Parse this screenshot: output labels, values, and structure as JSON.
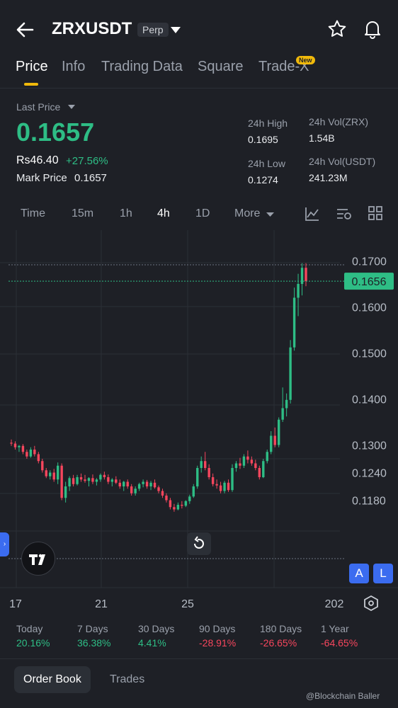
{
  "header": {
    "symbol": "ZRXUSDT",
    "contract_type": "Perp",
    "back_icon": "arrow-left-icon",
    "favorite_icon": "star-icon",
    "alert_icon": "bell-icon"
  },
  "tabs": [
    {
      "label": "Price",
      "active": true
    },
    {
      "label": "Info",
      "active": false
    },
    {
      "label": "Trading Data",
      "active": false
    },
    {
      "label": "Square",
      "active": false
    },
    {
      "label": "Trade-X",
      "active": false,
      "badge": "New"
    }
  ],
  "price_panel": {
    "last_price_label": "Last Price",
    "last_price": "0.1657",
    "fiat_value": "Rs46.40",
    "change_percent": "+27.56%",
    "mark_price_label": "Mark Price",
    "mark_price": "0.1657",
    "high_label": "24h High",
    "high_value": "0.1695",
    "low_label": "24h Low",
    "low_value": "0.1274",
    "vol_base_label": "24h Vol(ZRX)",
    "vol_base_value": "1.54B",
    "vol_quote_label": "24h Vol(USDT)",
    "vol_quote_value": "241.23M"
  },
  "intervals": [
    {
      "label": "Time",
      "active": false
    },
    {
      "label": "15m",
      "active": false
    },
    {
      "label": "1h",
      "active": false
    },
    {
      "label": "4h",
      "active": true
    },
    {
      "label": "1D",
      "active": false
    },
    {
      "label": "More",
      "active": false
    }
  ],
  "chart_tools": [
    "indicator-icon",
    "chart-settings-icon",
    "layout-grid-icon"
  ],
  "chart_data": {
    "type": "candlestick",
    "interval": "4h",
    "current_price_label": "0.1656",
    "y_tick_labels": [
      "0.1700",
      "0.1600",
      "0.1500",
      "0.1400",
      "0.1300",
      "0.1240",
      "0.1180"
    ],
    "x_tick_labels": [
      "17",
      "21",
      "25",
      "202"
    ],
    "colors": {
      "up": "#2ebd85",
      "down": "#f6465d",
      "price_line": "#2ebd85"
    },
    "candles": [
      [
        0.1305,
        0.1312,
        0.1298,
        0.1303
      ],
      [
        0.1303,
        0.1308,
        0.129,
        0.1295
      ],
      [
        0.1295,
        0.13,
        0.1285,
        0.1298
      ],
      [
        0.1298,
        0.1302,
        0.128,
        0.1285
      ],
      [
        0.1285,
        0.129,
        0.127,
        0.1275
      ],
      [
        0.1275,
        0.1295,
        0.1272,
        0.129
      ],
      [
        0.129,
        0.1298,
        0.1275,
        0.128
      ],
      [
        0.128,
        0.1285,
        0.126,
        0.1265
      ],
      [
        0.1265,
        0.127,
        0.124,
        0.1245
      ],
      [
        0.1245,
        0.125,
        0.1228,
        0.1232
      ],
      [
        0.1232,
        0.1245,
        0.1225,
        0.124
      ],
      [
        0.124,
        0.1248,
        0.122,
        0.1225
      ],
      [
        0.1225,
        0.1262,
        0.1215,
        0.1255
      ],
      [
        0.1255,
        0.126,
        0.118,
        0.1185
      ],
      [
        0.1185,
        0.122,
        0.1175,
        0.121
      ],
      [
        0.121,
        0.1232,
        0.12,
        0.1228
      ],
      [
        0.1228,
        0.1235,
        0.121,
        0.1215
      ],
      [
        0.1215,
        0.1235,
        0.1212,
        0.123
      ],
      [
        0.123,
        0.1238,
        0.122,
        0.1225
      ],
      [
        0.1225,
        0.1235,
        0.1218,
        0.1222
      ],
      [
        0.1222,
        0.123,
        0.121,
        0.1228
      ],
      [
        0.1228,
        0.1236,
        0.1215,
        0.122
      ],
      [
        0.122,
        0.1228,
        0.1212,
        0.1225
      ],
      [
        0.1225,
        0.1238,
        0.122,
        0.1235
      ],
      [
        0.1235,
        0.1242,
        0.1225,
        0.123
      ],
      [
        0.123,
        0.1236,
        0.1215,
        0.122
      ],
      [
        0.122,
        0.1228,
        0.121,
        0.1225
      ],
      [
        0.1225,
        0.1232,
        0.1215,
        0.1218
      ],
      [
        0.1218,
        0.1225,
        0.1205,
        0.121
      ],
      [
        0.121,
        0.1222,
        0.12,
        0.122
      ],
      [
        0.122,
        0.1225,
        0.1205,
        0.121
      ],
      [
        0.121,
        0.1215,
        0.119,
        0.1195
      ],
      [
        0.1195,
        0.121,
        0.119,
        0.1205
      ],
      [
        0.1205,
        0.1218,
        0.12,
        0.1215
      ],
      [
        0.1215,
        0.1225,
        0.1208,
        0.122
      ],
      [
        0.122,
        0.1224,
        0.1205,
        0.121
      ],
      [
        0.121,
        0.1222,
        0.1202,
        0.1218
      ],
      [
        0.1218,
        0.1225,
        0.1205,
        0.1208
      ],
      [
        0.1208,
        0.1212,
        0.1195,
        0.12
      ],
      [
        0.12,
        0.1205,
        0.1185,
        0.119
      ],
      [
        0.119,
        0.1195,
        0.1175,
        0.118
      ],
      [
        0.118,
        0.1185,
        0.116,
        0.1165
      ],
      [
        0.1165,
        0.1172,
        0.1155,
        0.116
      ],
      [
        0.116,
        0.1175,
        0.1158,
        0.117
      ],
      [
        0.117,
        0.1178,
        0.1162,
        0.1168
      ],
      [
        0.1168,
        0.118,
        0.1165,
        0.1178
      ],
      [
        0.1178,
        0.1192,
        0.1172,
        0.1188
      ],
      [
        0.1188,
        0.1215,
        0.1185,
        0.121
      ],
      [
        0.121,
        0.1255,
        0.1205,
        0.125
      ],
      [
        0.125,
        0.1275,
        0.124,
        0.1265
      ],
      [
        0.1265,
        0.1285,
        0.1245,
        0.125
      ],
      [
        0.125,
        0.1258,
        0.1225,
        0.123
      ],
      [
        0.123,
        0.1238,
        0.121,
        0.1215
      ],
      [
        0.1215,
        0.1225,
        0.1205,
        0.1212
      ],
      [
        0.1212,
        0.122,
        0.1195,
        0.12
      ],
      [
        0.12,
        0.1222,
        0.1195,
        0.1218
      ],
      [
        0.1218,
        0.1225,
        0.1198,
        0.1202
      ],
      [
        0.1202,
        0.1258,
        0.1198,
        0.125
      ],
      [
        0.125,
        0.1265,
        0.1242,
        0.126
      ],
      [
        0.126,
        0.1272,
        0.1248,
        0.1255
      ],
      [
        0.1255,
        0.128,
        0.125,
        0.1275
      ],
      [
        0.1275,
        0.1288,
        0.126,
        0.1268
      ],
      [
        0.1268,
        0.1275,
        0.1255,
        0.126
      ],
      [
        0.126,
        0.1268,
        0.1245,
        0.125
      ],
      [
        0.125,
        0.1255,
        0.1225,
        0.123
      ],
      [
        0.123,
        0.127,
        0.1228,
        0.1265
      ],
      [
        0.1265,
        0.129,
        0.126,
        0.1285
      ],
      [
        0.1285,
        0.133,
        0.128,
        0.132
      ],
      [
        0.132,
        0.1338,
        0.1295,
        0.13
      ],
      [
        0.13,
        0.136,
        0.1295,
        0.1355
      ],
      [
        0.1355,
        0.1425,
        0.135,
        0.138
      ],
      [
        0.138,
        0.1412,
        0.1362,
        0.1398
      ],
      [
        0.1398,
        0.1528,
        0.139,
        0.1512
      ],
      [
        0.1512,
        0.1642,
        0.1505,
        0.162
      ],
      [
        0.162,
        0.1672,
        0.158,
        0.165
      ],
      [
        0.165,
        0.1695,
        0.1625,
        0.1685
      ],
      [
        0.1685,
        0.1695,
        0.1645,
        0.1656
      ]
    ]
  },
  "chart_overlay": {
    "side_tab_glyph": "›",
    "logo_text": "TV",
    "reset_icon": "reset-icon",
    "a_button": "A",
    "l_button": "L",
    "settings_icon": "hexagon-settings-icon"
  },
  "performance": [
    {
      "label": "Today",
      "value": "20.16%",
      "sign": "pos"
    },
    {
      "label": "7 Days",
      "value": "36.38%",
      "sign": "pos"
    },
    {
      "label": "30 Days",
      "value": "4.41%",
      "sign": "pos"
    },
    {
      "label": "90 Days",
      "value": "-28.91%",
      "sign": "neg"
    },
    {
      "label": "180 Days",
      "value": "-26.65%",
      "sign": "neg"
    },
    {
      "label": "1 Year",
      "value": "-64.65%",
      "sign": "neg"
    }
  ],
  "bottom_tabs": [
    {
      "label": "Order Book",
      "active": true
    },
    {
      "label": "Trades",
      "active": false
    }
  ],
  "watermark": "@Blockchain Baller"
}
